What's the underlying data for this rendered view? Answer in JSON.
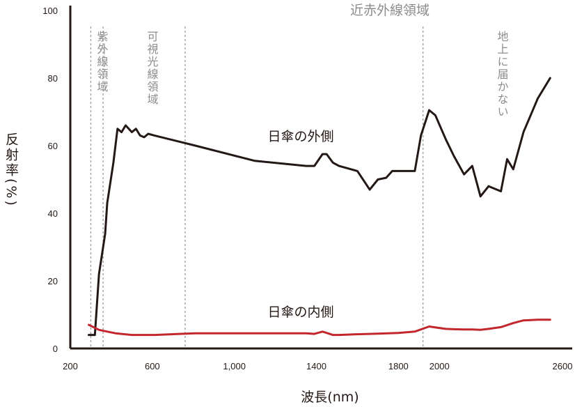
{
  "chart_data": {
    "type": "line",
    "title": "",
    "xlabel": "波長(nm)",
    "ylabel": "反射率(%)",
    "xlim": [
      200,
      2600
    ],
    "ylim": [
      0,
      100
    ],
    "x_tick_labels": [
      {
        "value": 200,
        "label": "200"
      },
      {
        "value": 600,
        "label": "600"
      },
      {
        "value": 1000,
        "label": "1,000"
      },
      {
        "value": 1400,
        "label": "1400"
      },
      {
        "value": 1800,
        "label": "1800"
      },
      {
        "value": 2000,
        "label": "2000"
      },
      {
        "value": 2600,
        "label": "2600"
      }
    ],
    "y_ticks": [
      0,
      20,
      40,
      60,
      80,
      100
    ],
    "grid": false,
    "series": [
      {
        "name": "日傘の外側",
        "color": "#231815",
        "x": [
          290,
          320,
          340,
          370,
          380,
          410,
          430,
          450,
          470,
          500,
          520,
          540,
          560,
          580,
          610,
          810,
          1100,
          1350,
          1390,
          1430,
          1450,
          1480,
          1510,
          1600,
          1660,
          1700,
          1740,
          1770,
          1880,
          1910,
          1950,
          1980,
          2030,
          2070,
          2120,
          2160,
          2200,
          2240,
          2300,
          2330,
          2360,
          2410,
          2480,
          2540
        ],
        "y": [
          4,
          4,
          22,
          34,
          43,
          55,
          65,
          64,
          66,
          64,
          65,
          63,
          62.5,
          63.5,
          63,
          60,
          55.5,
          54,
          54,
          57.5,
          57.5,
          55,
          54,
          52.5,
          47,
          50,
          50.5,
          52.5,
          52.5,
          63,
          70.5,
          69,
          62,
          57,
          51.5,
          54,
          45,
          48,
          46.5,
          56,
          53,
          64,
          74,
          80
        ]
      },
      {
        "name": "日傘の内側",
        "color": "#c1272d",
        "x": [
          290,
          340,
          380,
          420,
          500,
          610,
          810,
          1100,
          1350,
          1390,
          1430,
          1480,
          1510,
          1600,
          1700,
          1800,
          1880,
          1950,
          2030,
          2070,
          2120,
          2160,
          2200,
          2240,
          2300,
          2360,
          2410,
          2480,
          2540
        ],
        "y": [
          7,
          5.5,
          5,
          4.5,
          4,
          4,
          4.5,
          4.5,
          4.5,
          4.3,
          5,
          4,
          4,
          4.2,
          4.4,
          4.6,
          5,
          6.5,
          5.8,
          5.7,
          5.6,
          5.6,
          5.5,
          5.8,
          6.3,
          7.5,
          8.3,
          8.5,
          8.5
        ]
      }
    ],
    "regions": [
      {
        "label": "紫外線領域",
        "boundary": 360
      },
      {
        "label": "可視光線領域",
        "boundary": 760
      },
      {
        "label": "近赤外線領域",
        "boundary": 1920
      },
      {
        "label": "地上に届かない",
        "boundary": null
      }
    ]
  }
}
